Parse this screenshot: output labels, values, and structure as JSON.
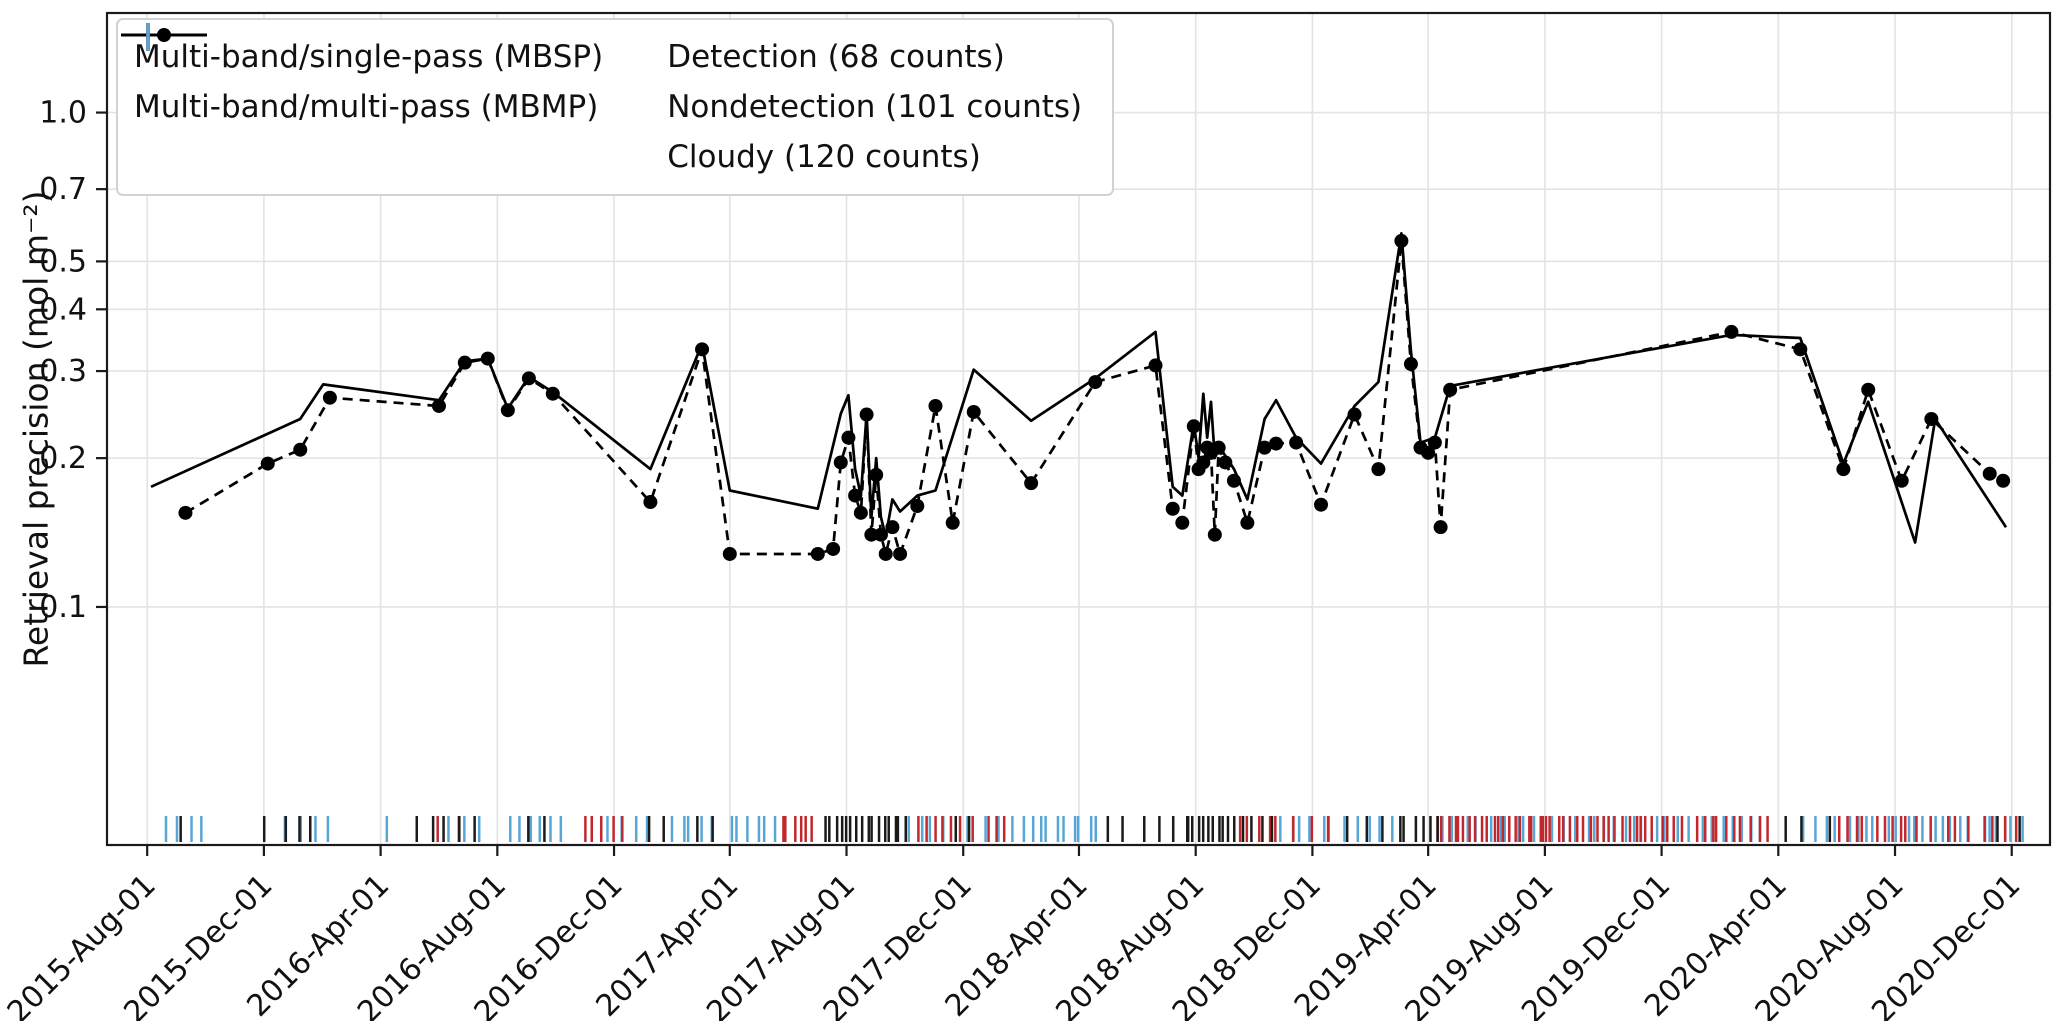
{
  "figure": {
    "ylabel": "Retrieval precision (mol m⁻²)",
    "background": "#ffffff"
  },
  "legend": {
    "items": [
      {
        "key": "mbsp",
        "label": "Multi-band/single-pass (MBSP)"
      },
      {
        "key": "mbmp",
        "label": "Multi-band/multi-pass (MBMP)"
      },
      {
        "key": "detection",
        "label": "Detection (68 counts)"
      },
      {
        "key": "nondetection",
        "label": "Nondetection (101 counts)"
      },
      {
        "key": "cloudy",
        "label": "Cloudy (120 counts)"
      }
    ]
  },
  "colors": {
    "series_line": "#000000",
    "detection": "#1a1a1a",
    "nondetection": "#c1272d",
    "cloudy": "#58a6d6",
    "grid": "#e3e3e3",
    "axis": "#1a1a1a",
    "text": "#111111"
  },
  "chart_data": {
    "type": "line",
    "title": "",
    "xlabel": "",
    "ylabel": "Retrieval precision (mol m⁻²)",
    "yscale": "log",
    "ylim": [
      0.033,
      1.59
    ],
    "xlim": [
      "2015-06-20",
      "2021-01-10"
    ],
    "grid": true,
    "legend_position": "upper-left",
    "yticks": {
      "values": [
        0.1,
        0.2,
        0.3,
        0.4,
        0.5,
        0.7,
        1.0
      ],
      "labels": [
        "0.1",
        "0.2",
        "0.3",
        "0.4",
        "0.5",
        "0.7",
        "1.0"
      ]
    },
    "xticks": {
      "dates": [
        "2015-08-01",
        "2015-12-01",
        "2016-04-01",
        "2016-08-01",
        "2016-12-01",
        "2017-04-01",
        "2017-08-01",
        "2017-12-01",
        "2018-04-01",
        "2018-08-01",
        "2018-12-01",
        "2019-04-01",
        "2019-08-01",
        "2019-12-01",
        "2020-04-01",
        "2020-08-01",
        "2020-12-01"
      ],
      "labels": [
        "2015-Aug-01",
        "2015-Dec-01",
        "2016-Apr-01",
        "2016-Aug-01",
        "2016-Dec-01",
        "2017-Apr-01",
        "2017-Aug-01",
        "2017-Dec-01",
        "2018-Apr-01",
        "2018-Aug-01",
        "2018-Dec-01",
        "2019-Apr-01",
        "2019-Aug-01",
        "2019-Dec-01",
        "2020-Apr-01",
        "2020-Aug-01",
        "2020-Dec-01"
      ]
    },
    "series": [
      {
        "key": "mbsp",
        "name": "Multi-band/single-pass (MBSP)",
        "style": "dashed-dot",
        "color": "#000000",
        "points": [
          [
            "2015-09-10",
            0.155
          ],
          [
            "2015-12-05",
            0.195
          ],
          [
            "2016-01-08",
            0.208
          ],
          [
            "2016-02-08",
            0.265
          ],
          [
            "2016-06-01",
            0.255
          ],
          [
            "2016-06-28",
            0.312
          ],
          [
            "2016-07-22",
            0.318
          ],
          [
            "2016-08-12",
            0.25
          ],
          [
            "2016-09-03",
            0.29
          ],
          [
            "2016-09-28",
            0.27
          ],
          [
            "2017-01-08",
            0.163
          ],
          [
            "2017-03-03",
            0.332
          ],
          [
            "2017-04-01",
            0.128
          ],
          [
            "2017-07-02",
            0.128
          ],
          [
            "2017-07-18",
            0.131
          ],
          [
            "2017-07-26",
            0.196
          ],
          [
            "2017-08-03",
            0.22
          ],
          [
            "2017-08-10",
            0.168
          ],
          [
            "2017-08-16",
            0.155
          ],
          [
            "2017-08-22",
            0.245
          ],
          [
            "2017-08-27",
            0.14
          ],
          [
            "2017-09-01",
            0.185
          ],
          [
            "2017-09-06",
            0.14
          ],
          [
            "2017-09-11",
            0.128
          ],
          [
            "2017-09-18",
            0.145
          ],
          [
            "2017-09-26",
            0.128
          ],
          [
            "2017-10-14",
            0.16
          ],
          [
            "2017-11-02",
            0.255
          ],
          [
            "2017-11-20",
            0.148
          ],
          [
            "2017-12-12",
            0.248
          ],
          [
            "2018-02-10",
            0.178
          ],
          [
            "2018-04-18",
            0.285
          ],
          [
            "2018-06-20",
            0.308
          ],
          [
            "2018-07-08",
            0.158
          ],
          [
            "2018-07-18",
            0.148
          ],
          [
            "2018-07-30",
            0.232
          ],
          [
            "2018-08-04",
            0.19
          ],
          [
            "2018-08-09",
            0.196
          ],
          [
            "2018-08-13",
            0.21
          ],
          [
            "2018-08-17",
            0.205
          ],
          [
            "2018-08-21",
            0.14
          ],
          [
            "2018-08-25",
            0.21
          ],
          [
            "2018-09-01",
            0.196
          ],
          [
            "2018-09-10",
            0.18
          ],
          [
            "2018-09-24",
            0.148
          ],
          [
            "2018-10-12",
            0.21
          ],
          [
            "2018-10-24",
            0.214
          ],
          [
            "2018-11-14",
            0.215
          ],
          [
            "2018-12-10",
            0.161
          ],
          [
            "2019-01-14",
            0.245
          ],
          [
            "2019-02-08",
            0.19
          ],
          [
            "2019-03-04",
            0.55
          ],
          [
            "2019-03-14",
            0.31
          ],
          [
            "2019-03-24",
            0.21
          ],
          [
            "2019-04-01",
            0.205
          ],
          [
            "2019-04-08",
            0.215
          ],
          [
            "2019-04-14",
            0.145
          ],
          [
            "2019-04-24",
            0.275
          ],
          [
            "2020-02-12",
            0.36
          ],
          [
            "2020-04-24",
            0.332
          ],
          [
            "2020-06-08",
            0.19
          ],
          [
            "2020-07-04",
            0.275
          ],
          [
            "2020-08-08",
            0.18
          ],
          [
            "2020-09-08",
            0.24
          ],
          [
            "2020-11-08",
            0.186
          ],
          [
            "2020-11-22",
            0.18
          ]
        ]
      },
      {
        "key": "mbmp",
        "name": "Multi-band/multi-pass (MBMP)",
        "style": "solid",
        "color": "#000000",
        "points": [
          [
            "2015-08-05",
            0.175
          ],
          [
            "2016-01-08",
            0.24
          ],
          [
            "2016-02-01",
            0.282
          ],
          [
            "2016-06-01",
            0.262
          ],
          [
            "2016-06-28",
            0.314
          ],
          [
            "2016-07-22",
            0.318
          ],
          [
            "2016-08-12",
            0.252
          ],
          [
            "2016-09-03",
            0.292
          ],
          [
            "2016-09-28",
            0.272
          ],
          [
            "2017-01-08",
            0.19
          ],
          [
            "2017-03-03",
            0.34
          ],
          [
            "2017-04-01",
            0.172
          ],
          [
            "2017-07-02",
            0.158
          ],
          [
            "2017-07-26",
            0.246
          ],
          [
            "2017-08-03",
            0.268
          ],
          [
            "2017-08-10",
            0.19
          ],
          [
            "2017-08-16",
            0.168
          ],
          [
            "2017-08-22",
            0.246
          ],
          [
            "2017-08-27",
            0.152
          ],
          [
            "2017-09-01",
            0.2
          ],
          [
            "2017-09-06",
            0.152
          ],
          [
            "2017-09-11",
            0.139
          ],
          [
            "2017-09-18",
            0.165
          ],
          [
            "2017-09-26",
            0.156
          ],
          [
            "2017-10-14",
            0.168
          ],
          [
            "2017-11-02",
            0.172
          ],
          [
            "2017-12-12",
            0.302
          ],
          [
            "2018-02-10",
            0.238
          ],
          [
            "2018-04-18",
            0.29
          ],
          [
            "2018-06-20",
            0.36
          ],
          [
            "2018-07-08",
            0.175
          ],
          [
            "2018-07-18",
            0.168
          ],
          [
            "2018-07-30",
            0.235
          ],
          [
            "2018-08-04",
            0.2
          ],
          [
            "2018-08-09",
            0.27
          ],
          [
            "2018-08-13",
            0.22
          ],
          [
            "2018-08-17",
            0.26
          ],
          [
            "2018-08-21",
            0.2
          ],
          [
            "2018-08-25",
            0.212
          ],
          [
            "2018-09-10",
            0.19
          ],
          [
            "2018-09-24",
            0.165
          ],
          [
            "2018-10-12",
            0.24
          ],
          [
            "2018-10-24",
            0.262
          ],
          [
            "2018-11-14",
            0.22
          ],
          [
            "2018-12-10",
            0.195
          ],
          [
            "2019-01-14",
            0.255
          ],
          [
            "2019-02-08",
            0.285
          ],
          [
            "2019-03-04",
            0.57
          ],
          [
            "2019-03-14",
            0.33
          ],
          [
            "2019-03-24",
            0.215
          ],
          [
            "2019-04-08",
            0.22
          ],
          [
            "2019-04-24",
            0.28
          ],
          [
            "2020-02-12",
            0.355
          ],
          [
            "2020-04-24",
            0.35
          ],
          [
            "2020-06-08",
            0.195
          ],
          [
            "2020-07-04",
            0.26
          ],
          [
            "2020-08-22",
            0.135
          ],
          [
            "2020-09-12",
            0.24
          ],
          [
            "2020-11-25",
            0.145
          ]
        ]
      }
    ],
    "rug": {
      "detection": {
        "label": "Detection (68 counts)",
        "count": 68,
        "color": "#1a1a1a",
        "segments": [
          [
            "2015-09-05",
            "2015-09-05",
            1
          ],
          [
            "2015-12-05",
            "2016-01-20",
            4
          ],
          [
            "2016-05-10",
            "2016-07-05",
            5
          ],
          [
            "2016-09-01",
            "2016-09-20",
            2
          ],
          [
            "2017-01-10",
            "2017-01-25",
            2
          ],
          [
            "2017-03-01",
            "2017-03-15",
            2
          ],
          [
            "2017-07-10",
            "2017-10-01",
            16
          ],
          [
            "2017-11-25",
            "2017-12-05",
            2
          ],
          [
            "2018-05-01",
            "2018-05-15",
            2
          ],
          [
            "2018-06-10",
            "2018-07-20",
            4
          ],
          [
            "2018-07-25",
            "2018-09-10",
            10
          ],
          [
            "2018-09-20",
            "2018-10-20",
            4
          ],
          [
            "2019-01-10",
            "2019-02-10",
            3
          ],
          [
            "2019-03-01",
            "2019-04-10",
            6
          ],
          [
            "2020-04-10",
            "2020-05-20",
            3
          ],
          [
            "2020-11-15",
            "2020-12-05",
            2
          ]
        ]
      },
      "nondetection": {
        "label": "Nondetection (101 counts)",
        "count": 101,
        "color": "#c1272d",
        "segments": [
          [
            "2016-06-01",
            "2016-06-20",
            2
          ],
          [
            "2016-11-01",
            "2016-12-10",
            5
          ],
          [
            "2017-05-25",
            "2017-06-25",
            6
          ],
          [
            "2017-10-15",
            "2017-11-20",
            5
          ],
          [
            "2017-12-01",
            "2018-01-15",
            5
          ],
          [
            "2018-09-15",
            "2018-10-25",
            5
          ],
          [
            "2018-11-15",
            "2018-12-15",
            3
          ],
          [
            "2019-04-10",
            "2019-08-01",
            20
          ],
          [
            "2019-08-01",
            "2019-12-20",
            22
          ],
          [
            "2020-01-05",
            "2020-03-20",
            10
          ],
          [
            "2020-06-01",
            "2020-08-10",
            8
          ],
          [
            "2020-08-15",
            "2020-10-20",
            6
          ],
          [
            "2020-11-01",
            "2020-12-10",
            4
          ]
        ]
      },
      "cloudy": {
        "label": "Cloudy (120 counts)",
        "count": 120,
        "color": "#58a6d6",
        "segments": [
          [
            "2015-08-20",
            "2015-09-25",
            4
          ],
          [
            "2015-12-20",
            "2016-02-10",
            4
          ],
          [
            "2016-04-05",
            "2016-04-10",
            1
          ],
          [
            "2016-06-15",
            "2016-07-15",
            3
          ],
          [
            "2016-08-10",
            "2016-10-10",
            6
          ],
          [
            "2016-11-20",
            "2017-01-05",
            4
          ],
          [
            "2017-02-01",
            "2017-03-10",
            5
          ],
          [
            "2017-04-01",
            "2017-05-20",
            6
          ],
          [
            "2017-10-05",
            "2017-11-10",
            4
          ],
          [
            "2017-12-10",
            "2018-01-20",
            4
          ],
          [
            "2018-02-01",
            "2018-04-20",
            10
          ],
          [
            "2018-11-01",
            "2018-12-20",
            6
          ],
          [
            "2019-01-05",
            "2019-02-20",
            5
          ],
          [
            "2019-04-15",
            "2019-07-31",
            12
          ],
          [
            "2019-08-01",
            "2019-12-15",
            14
          ],
          [
            "2020-01-01",
            "2020-03-15",
            8
          ],
          [
            "2020-05-01",
            "2020-08-01",
            10
          ],
          [
            "2020-08-15",
            "2020-10-15",
            8
          ],
          [
            "2020-11-01",
            "2020-12-10",
            6
          ]
        ]
      }
    }
  }
}
